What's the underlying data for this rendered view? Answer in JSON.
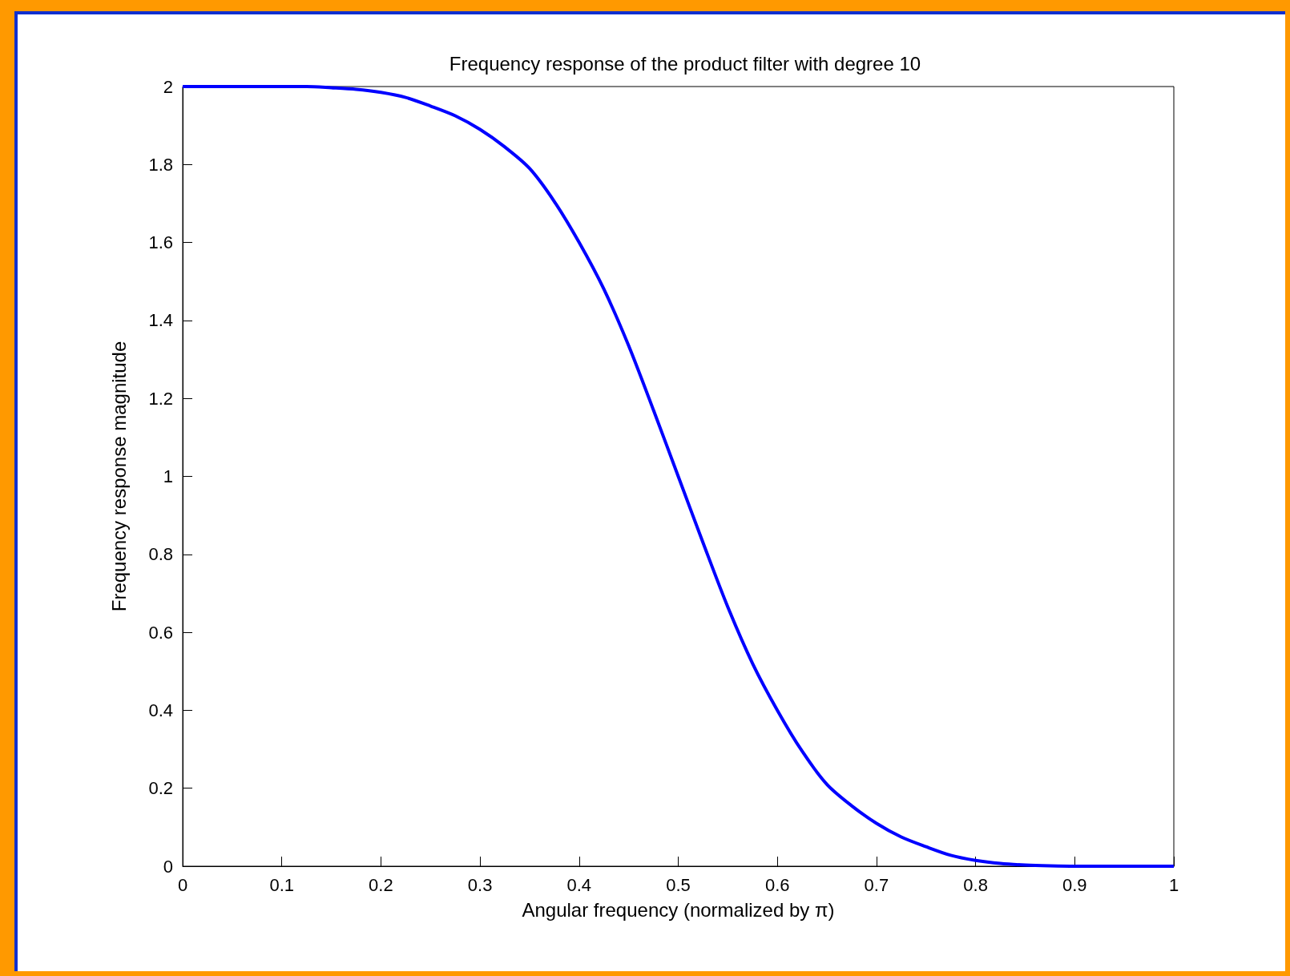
{
  "chart_data": {
    "type": "line",
    "title": "Frequency response of the product filter with degree 10",
    "xlabel": "Angular frequency (normalized by π)",
    "ylabel": "Frequency response magnitude",
    "x": [
      0,
      0.025,
      0.05,
      0.075,
      0.1,
      0.125,
      0.15,
      0.175,
      0.2,
      0.225,
      0.25,
      0.275,
      0.3,
      0.325,
      0.35,
      0.375,
      0.4,
      0.425,
      0.45,
      0.475,
      0.5,
      0.525,
      0.55,
      0.575,
      0.6,
      0.625,
      0.65,
      0.675,
      0.7,
      0.725,
      0.75,
      0.775,
      0.8,
      0.825,
      0.85,
      0.875,
      0.9,
      0.925,
      0.95,
      0.975,
      1
    ],
    "series": [
      {
        "color": "#0000ff",
        "values": [
          2,
          2,
          2,
          2,
          2,
          2,
          1.997,
          1.993,
          1.985,
          1.972,
          1.95,
          1.925,
          1.89,
          1.845,
          1.79,
          1.705,
          1.6,
          1.48,
          1.335,
          1.17,
          1,
          0.83,
          0.665,
          0.52,
          0.4,
          0.295,
          0.21,
          0.155,
          0.11,
          0.075,
          0.05,
          0.028,
          0.015,
          0.007,
          0.003,
          0.001,
          0,
          0,
          0,
          0,
          0
        ]
      }
    ],
    "xlim": [
      0,
      1
    ],
    "xticks": [
      0,
      0.1,
      0.2,
      0.3,
      0.4,
      0.5,
      0.6,
      0.7,
      0.8,
      0.9,
      1
    ],
    "ylim": [
      0,
      2
    ],
    "yticks": [
      0,
      0.2,
      0.4,
      0.6,
      0.8,
      1,
      1.2,
      1.4,
      1.6,
      1.8,
      2
    ],
    "grid": false,
    "marker": "none",
    "line_style": "solid"
  }
}
